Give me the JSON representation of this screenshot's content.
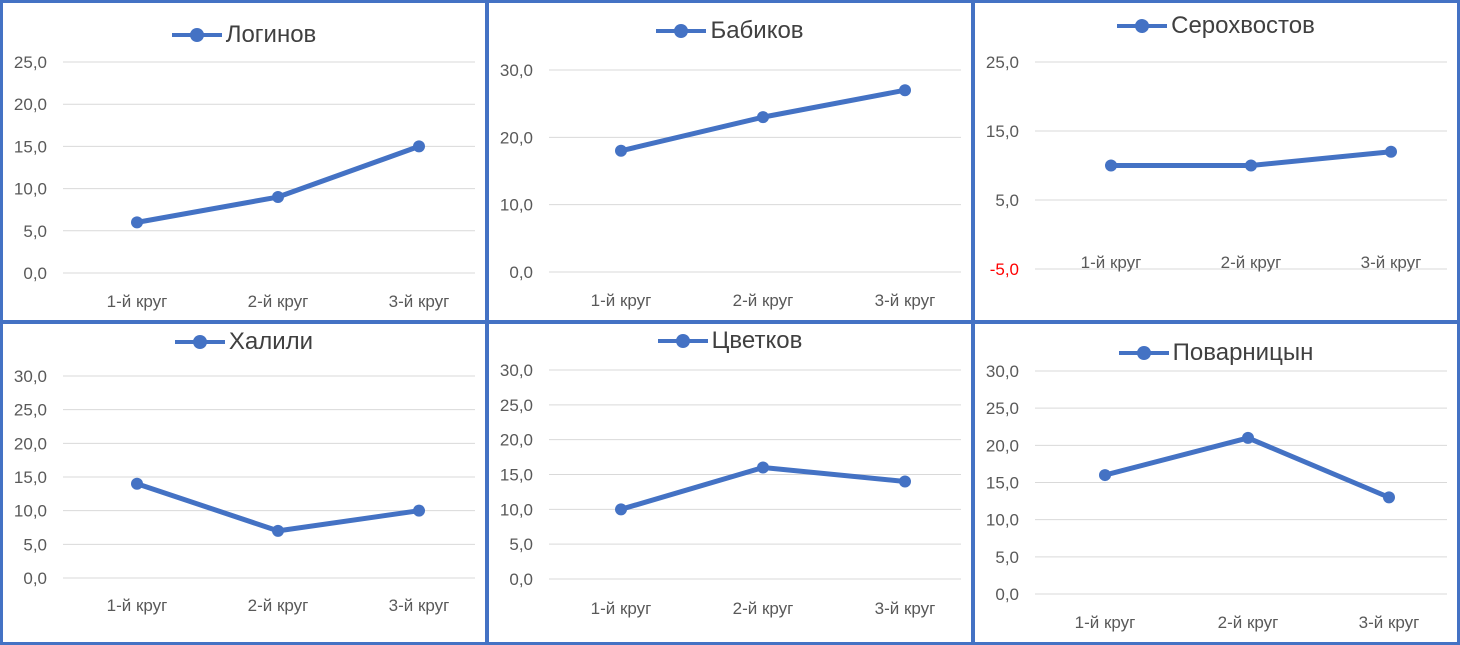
{
  "colors": {
    "series": "#4472c4",
    "grid": "#d9d9d9",
    "tick_text": "#595959",
    "negative_tick": "#ff0000",
    "panel_border": "#4472c4"
  },
  "chart_data": [
    {
      "type": "line",
      "legend_position": "top",
      "grid": true,
      "categories": [
        "1-й круг",
        "2-й круг",
        "3-й круг"
      ],
      "series": [
        {
          "name": "Логинов",
          "values": [
            6,
            9,
            15
          ]
        }
      ],
      "y_ticks": [
        "0,0",
        "5,0",
        "10,0",
        "15,0",
        "20,0",
        "25,0"
      ],
      "ylim": [
        0,
        25
      ]
    },
    {
      "type": "line",
      "legend_position": "top",
      "grid": true,
      "categories": [
        "1-й круг",
        "2-й круг",
        "3-й круг"
      ],
      "series": [
        {
          "name": "Бабиков",
          "values": [
            18,
            23,
            27
          ]
        }
      ],
      "y_ticks": [
        "0,0",
        "10,0",
        "20,0",
        "30,0"
      ],
      "ylim": [
        0,
        30
      ]
    },
    {
      "type": "line",
      "legend_position": "top",
      "grid": true,
      "categories": [
        "1-й круг",
        "2-й круг",
        "3-й круг"
      ],
      "series": [
        {
          "name": "Серохвостов",
          "values": [
            10,
            10,
            12
          ]
        }
      ],
      "y_ticks": [
        "-5,0",
        "5,0",
        "15,0",
        "25,0"
      ],
      "ylim": [
        -5,
        25
      ]
    },
    {
      "type": "line",
      "legend_position": "top",
      "grid": true,
      "categories": [
        "1-й круг",
        "2-й круг",
        "3-й круг"
      ],
      "series": [
        {
          "name": "Халили",
          "values": [
            14,
            7,
            10
          ]
        }
      ],
      "y_ticks": [
        "0,0",
        "5,0",
        "10,0",
        "15,0",
        "20,0",
        "25,0",
        "30,0"
      ],
      "ylim": [
        0,
        30
      ]
    },
    {
      "type": "line",
      "legend_position": "top",
      "grid": true,
      "categories": [
        "1-й круг",
        "2-й круг",
        "3-й круг"
      ],
      "series": [
        {
          "name": "Цветков",
          "values": [
            10,
            16,
            14
          ]
        }
      ],
      "y_ticks": [
        "0,0",
        "5,0",
        "10,0",
        "15,0",
        "20,0",
        "25,0",
        "30,0"
      ],
      "ylim": [
        0,
        30
      ]
    },
    {
      "type": "line",
      "legend_position": "top",
      "grid": true,
      "categories": [
        "1-й круг",
        "2-й круг",
        "3-й круг"
      ],
      "series": [
        {
          "name": "Поварницын",
          "values": [
            16,
            21,
            13
          ]
        }
      ],
      "y_ticks": [
        "0,0",
        "5,0",
        "10,0",
        "15,0",
        "20,0",
        "25,0",
        "30,0"
      ],
      "ylim": [
        0,
        30
      ]
    }
  ]
}
